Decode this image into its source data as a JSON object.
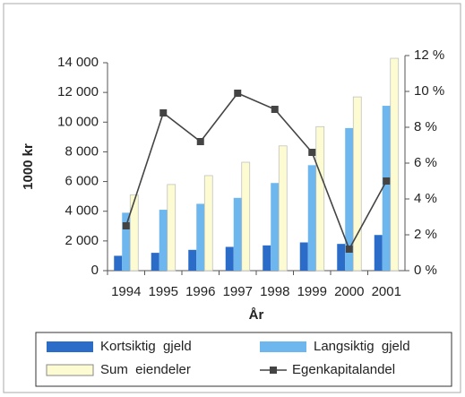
{
  "chart_data": {
    "type": "bar_line",
    "y_label": "1000 kr",
    "x_label": "År",
    "categories": [
      "1994",
      "1995",
      "1996",
      "1997",
      "1998",
      "1999",
      "2000",
      "2001"
    ],
    "series": [
      {
        "name": "Kortsiktig  gjeld",
        "color": "#2a6cc8",
        "values": [
          1000,
          1200,
          1400,
          1600,
          1700,
          1900,
          1800,
          2400
        ]
      },
      {
        "name": "Langsiktig  gjeld",
        "color": "#6db6ee",
        "values": [
          3900,
          4100,
          4500,
          4900,
          5900,
          7100,
          9600,
          11100
        ]
      },
      {
        "name": "Sum  eiendeler",
        "color": "#fcfbd2",
        "values": [
          5100,
          5800,
          6400,
          7300,
          8400,
          9700,
          11700,
          14300
        ]
      },
      {
        "name": "Egenkapitalandel",
        "color": "#444444",
        "axis": "y2",
        "values": [
          2.5,
          8.8,
          7.2,
          9.9,
          9.0,
          6.6,
          1.2,
          5.0
        ]
      }
    ],
    "ylim": [
      0,
      14000
    ],
    "yticks": [
      0,
      {
        "value": 2000,
        "label": "2 000"
      },
      {
        "value": 4000,
        "label": "4 000"
      },
      {
        "value": 6000,
        "label": "6 000"
      },
      {
        "value": 8000,
        "label": "8 000"
      },
      {
        "value": 10000,
        "label": "10 000"
      },
      {
        "value": 12000,
        "label": "12 000"
      },
      {
        "value": 14000,
        "label": "14 000"
      }
    ],
    "y2lim": [
      0,
      12
    ],
    "y2ticks": [
      {
        "value": 0,
        "label": "0 %"
      },
      {
        "value": 2,
        "label": "2 %"
      },
      {
        "value": 4,
        "label": "4 %"
      },
      {
        "value": 6,
        "label": "6 %"
      },
      {
        "value": 8,
        "label": "8 %"
      },
      {
        "value": 10,
        "label": "10 %"
      },
      {
        "value": 12,
        "label": "12 %"
      }
    ],
    "legend": "bottom"
  }
}
